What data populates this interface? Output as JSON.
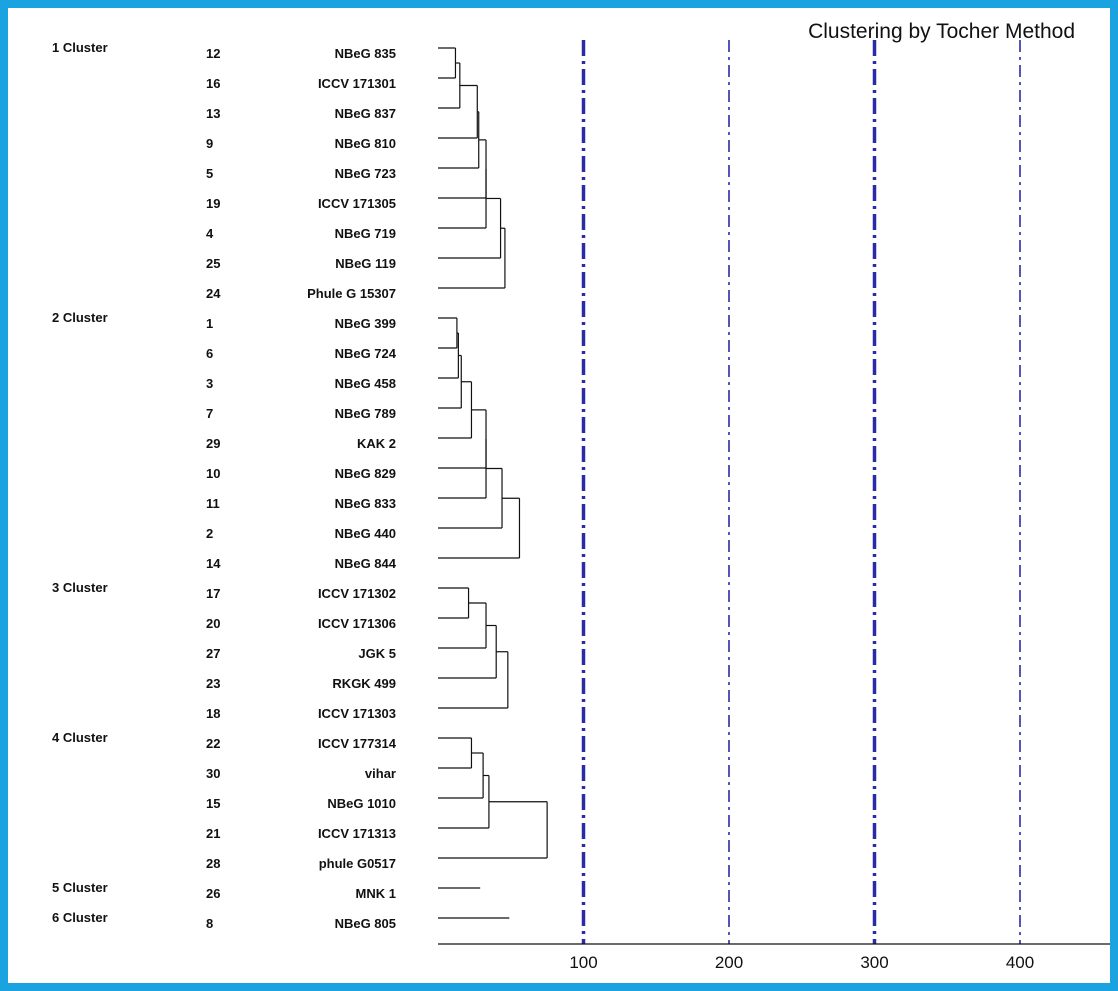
{
  "chart_data": {
    "type": "dendrogram",
    "title": "Clustering by Tocher Method",
    "x_ticks": [
      100,
      200,
      300,
      400
    ],
    "xlim": [
      0,
      470
    ],
    "reference_lines": [
      {
        "x": 100,
        "style": "thick-dashdot"
      },
      {
        "x": 200,
        "style": "thin-dashdot"
      },
      {
        "x": 300,
        "style": "thick-dashdot"
      },
      {
        "x": 400,
        "style": "thin-dashdot"
      }
    ],
    "line_color": "#2b2ba8",
    "clusters": [
      {
        "label": "1 Cluster",
        "items": [
          {
            "id": "12",
            "name": "NBeG 835"
          },
          {
            "id": "16",
            "name": "ICCV 171301"
          },
          {
            "id": "13",
            "name": "NBeG 837"
          },
          {
            "id": "9",
            "name": "NBeG 810"
          },
          {
            "id": "5",
            "name": "NBeG 723"
          },
          {
            "id": "19",
            "name": "ICCV 171305"
          },
          {
            "id": "4",
            "name": "NBeG 719"
          },
          {
            "id": "25",
            "name": "NBeG 119"
          },
          {
            "id": "24",
            "name": "Phule G 15307"
          }
        ],
        "merges": [
          12,
          15,
          27,
          28,
          33,
          33,
          43,
          46
        ]
      },
      {
        "label": "2 Cluster",
        "items": [
          {
            "id": "1",
            "name": "NBeG 399"
          },
          {
            "id": "6",
            "name": "NBeG 724"
          },
          {
            "id": "3",
            "name": "NBeG 458"
          },
          {
            "id": "7",
            "name": "NBeG 789"
          },
          {
            "id": "29",
            "name": "KAK 2"
          },
          {
            "id": "10",
            "name": "NBeG 829"
          },
          {
            "id": "11",
            "name": "NBeG 833"
          },
          {
            "id": "2",
            "name": "NBeG 440"
          },
          {
            "id": "14",
            "name": "NBeG 844"
          }
        ],
        "merges": [
          13,
          14,
          16,
          23,
          33,
          33,
          44,
          56
        ]
      },
      {
        "label": "3 Cluster",
        "items": [
          {
            "id": "17",
            "name": "ICCV 171302"
          },
          {
            "id": "20",
            "name": "ICCV 171306"
          },
          {
            "id": "27",
            "name": "JGK 5"
          },
          {
            "id": "23",
            "name": "RKGK 499"
          },
          {
            "id": "18",
            "name": "ICCV 171303"
          }
        ],
        "merges": [
          21,
          33,
          40,
          48
        ]
      },
      {
        "label": "4 Cluster",
        "items": [
          {
            "id": "22",
            "name": "ICCV 177314"
          },
          {
            "id": "30",
            "name": "vihar"
          },
          {
            "id": "15",
            "name": "NBeG 1010"
          },
          {
            "id": "21",
            "name": "ICCV 171313"
          },
          {
            "id": "28",
            "name": "phule G0517"
          }
        ],
        "merges": [
          23,
          31,
          35,
          75
        ]
      },
      {
        "label": "5 Cluster",
        "items": [
          {
            "id": "26",
            "name": "MNK 1"
          }
        ],
        "merges": [],
        "stub": 29
      },
      {
        "label": "6 Cluster",
        "items": [
          {
            "id": "8",
            "name": "NBeG 805"
          }
        ],
        "merges": [],
        "stub": 49
      }
    ]
  }
}
